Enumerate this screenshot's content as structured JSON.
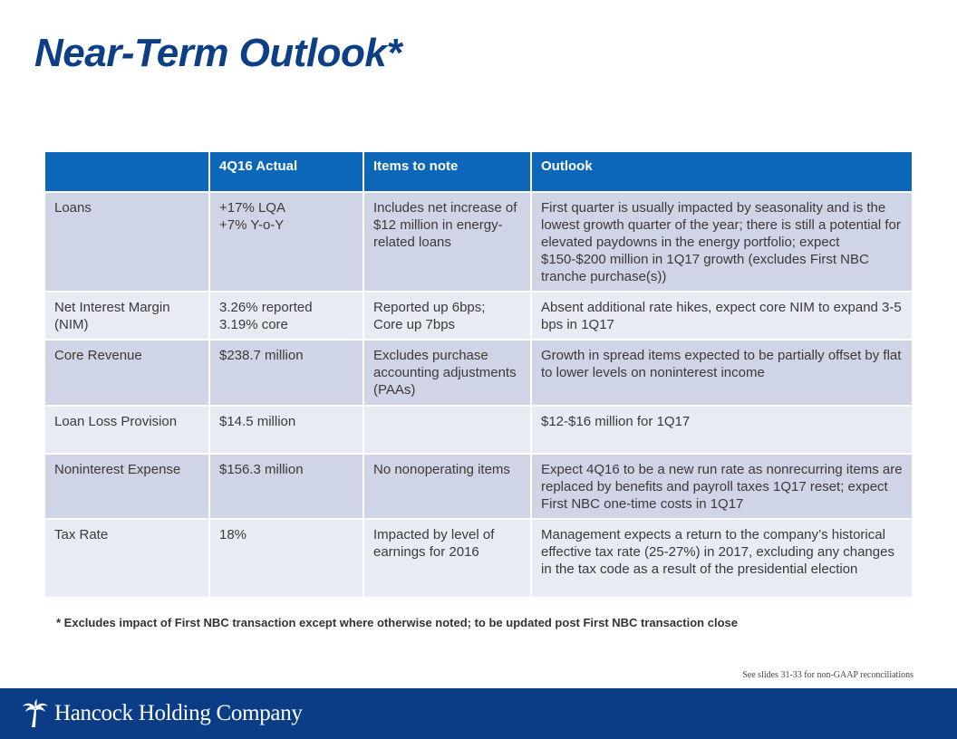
{
  "title": "Near-Term Outlook*",
  "table": {
    "headers": [
      "",
      "4Q16 Actual",
      "Items to note",
      "Outlook"
    ],
    "rows": [
      [
        "Loans",
        "+17% LQA\n+7% Y-o-Y",
        "Includes net increase of $12 million in energy-related loans",
        "First quarter is usually impacted by seasonality and is the lowest growth quarter of the year; there is still a potential for elevated paydowns in the energy portfolio; expect $150-$200 million in 1Q17 growth (excludes First NBC tranche purchase(s))"
      ],
      [
        "Net Interest Margin (NIM)",
        "3.26% reported\n3.19% core",
        "Reported up 6bps;\nCore up 7bps",
        "Absent additional rate hikes, expect core NIM to expand 3-5 bps in 1Q17"
      ],
      [
        "Core Revenue",
        "$238.7 million",
        "Excludes purchase accounting adjustments (PAAs)",
        "Growth in spread items expected to be partially offset by flat to lower levels on noninterest income"
      ],
      [
        "Loan Loss Provision",
        "$14.5 million",
        "",
        "$12-$16 million for 1Q17"
      ],
      [
        "Noninterest Expense",
        "$156.3 million",
        "No nonoperating items",
        "Expect 4Q16 to be a new run rate as nonrecurring items are replaced by benefits and payroll taxes 1Q17 reset; expect First NBC one-time costs in 1Q17"
      ],
      [
        "Tax Rate",
        "18%",
        "Impacted by level of earnings for 2016",
        "Management expects a return to the company’s historical effective tax rate (25-27%) in 2017, excluding any changes in the tax code as a result of the presidential election"
      ]
    ]
  },
  "footnote": "* Excludes impact of First NBC transaction except where otherwise noted; to be updated post First NBC transaction close",
  "see_slides": "See slides 31-33 for non-GAAP reconciliations",
  "footer": {
    "company": "Hancock Holding Company",
    "logo_icon": "palm-tree-icon"
  },
  "colors": {
    "title": "#0d3f86",
    "header_bg": "#0d67b8",
    "row_dark": "#cfd5e6",
    "row_light": "#e8ebf3",
    "footer_bg": "#0b3d87"
  }
}
